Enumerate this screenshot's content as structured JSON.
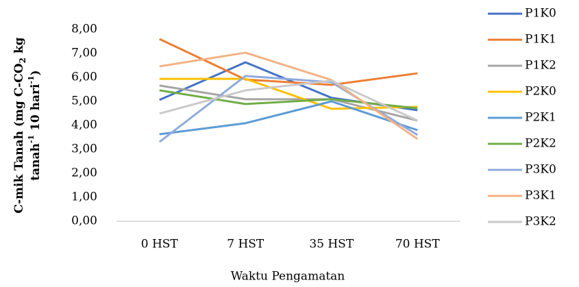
{
  "chart_data": {
    "type": "line",
    "xlabel": "Waktu Pengamatan",
    "ylabel": {
      "line1": [
        "C-mik Tanah (mg C-CO",
        "2",
        " kg"
      ],
      "line2": [
        "tanah",
        "-1",
        " 10 hari",
        "-1",
        ")"
      ]
    },
    "categories": [
      "0 HST",
      "7 HST",
      "35 HST",
      "70 HST"
    ],
    "ylim": [
      0,
      8
    ],
    "yticks": [
      {
        "value": 0,
        "label": "0,00"
      },
      {
        "value": 1,
        "label": "1,00"
      },
      {
        "value": 2,
        "label": "2,00"
      },
      {
        "value": 3,
        "label": "3,00"
      },
      {
        "value": 4,
        "label": "4,00"
      },
      {
        "value": 5,
        "label": "5,00"
      },
      {
        "value": 6,
        "label": "6,00"
      },
      {
        "value": 7,
        "label": "7,00"
      },
      {
        "value": 8,
        "label": "8,00"
      }
    ],
    "legend": "right",
    "series": [
      {
        "name": "P1K0",
        "color": "#4472c4",
        "values": [
          5.06,
          6.63,
          5.15,
          4.63
        ]
      },
      {
        "name": "P1K1",
        "color": "#ed7d31",
        "values": [
          7.6,
          5.91,
          5.69,
          6.17
        ]
      },
      {
        "name": "P1K2",
        "color": "#a5a5a5",
        "values": [
          5.66,
          5.09,
          5.09,
          4.2
        ]
      },
      {
        "name": "P2K0",
        "color": "#ffc000",
        "values": [
          5.94,
          5.94,
          4.69,
          4.77
        ]
      },
      {
        "name": "P2K1",
        "color": "#5b9bd5",
        "values": [
          3.63,
          4.09,
          5.0,
          3.8
        ]
      },
      {
        "name": "P2K2",
        "color": "#70ad47",
        "values": [
          5.46,
          4.89,
          5.09,
          4.71
        ]
      },
      {
        "name": "P3K0",
        "color": "#8faadc",
        "values": [
          3.31,
          6.06,
          5.8,
          3.6
        ]
      },
      {
        "name": "P3K1",
        "color": "#f4b183",
        "values": [
          6.46,
          7.03,
          5.89,
          3.43
        ]
      },
      {
        "name": "P3K2",
        "color": "#c9c9c9",
        "values": [
          4.49,
          5.46,
          5.86,
          4.2
        ]
      }
    ]
  }
}
